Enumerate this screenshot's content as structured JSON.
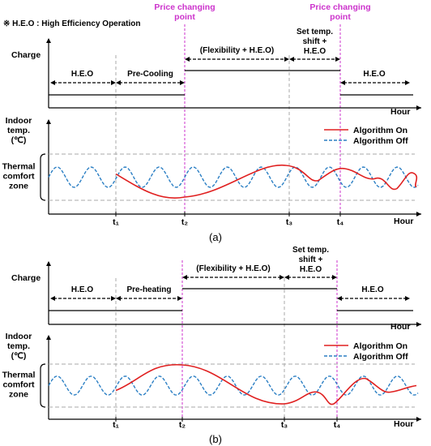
{
  "note": "※ H.E.O : High Efficiency Operation",
  "colors": {
    "price_line": "#cc33cc",
    "algorithm_on": "#e02020",
    "algorithm_off": "#2b7fc4",
    "guide": "#aaaaaa",
    "axis": "#000000"
  },
  "panels": [
    {
      "caption": "(a)",
      "price_label_line1": "Price changing",
      "price_label_line2": "point",
      "charge_label": "Charge",
      "hour_label": "Hour",
      "indoor_label_line1": "Indoor",
      "indoor_label_line2": "temp.",
      "indoor_label_line3": "(℃)",
      "comfort_label_line1": "Thermal",
      "comfort_label_line2": "comfort",
      "comfort_label_line3": "zone",
      "legend_on": "Algorithm On",
      "legend_off": "Algorithm Off",
      "ticks": [
        "t₁",
        "t₂",
        "t₃",
        "t₄"
      ],
      "segments": {
        "heo_left": "H.E.O",
        "pre": "Pre-Cooling",
        "flex": "(Flexibility + H.E.O)",
        "shift_line1": "Set temp.",
        "shift_line2": "shift +",
        "shift_line3": "H.E.O",
        "heo_right": "H.E.O"
      },
      "charge_levels": {
        "heo": 0.3,
        "pre": 0.3,
        "flex": 0.8,
        "shift": 0.8,
        "heo_right": 0.3
      },
      "algorithm_on_trend": "pre-cooling dip to comfort lower bound at t2, rise to upper bound before t3"
    },
    {
      "caption": "(b)",
      "price_label_line1": "",
      "price_label_line2": "",
      "charge_label": "Charge",
      "hour_label": "Hour",
      "indoor_label_line1": "Indoor",
      "indoor_label_line2": "temp.",
      "indoor_label_line3": "(℃)",
      "comfort_label_line1": "Thermal",
      "comfort_label_line2": "comfort",
      "comfort_label_line3": "zone",
      "legend_on": "Algorithm On",
      "legend_off": "Algorithm Off",
      "ticks": [
        "t₁",
        "t₂",
        "t₃",
        "t₄"
      ],
      "segments": {
        "heo_left": "H.E.O",
        "pre": "Pre-heating",
        "flex": "(Flexibility + H.E.O)",
        "shift_line1": "Set temp.",
        "shift_line2": "shift +",
        "shift_line3": "H.E.O",
        "heo_right": "H.E.O"
      },
      "charge_levels": {
        "heo": 0.3,
        "pre": 0.3,
        "flex": 0.8,
        "shift": 0.8,
        "heo_right": 0.3
      },
      "algorithm_on_trend": "pre-heating rise to comfort upper bound at t2, fall to lower bound after t3"
    }
  ]
}
